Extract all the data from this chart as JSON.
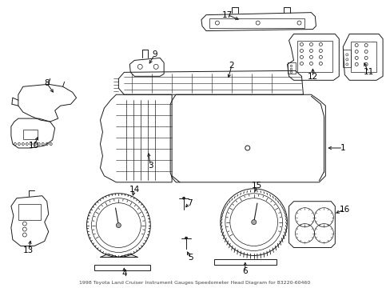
{
  "title": "1998 Toyota Land Cruiser Instrument Gauges Speedometer Head Diagram for 83220-60460",
  "bg_color": "#ffffff",
  "line_color": "#1a1a1a",
  "label_color": "#000000",
  "fig_width": 4.89,
  "fig_height": 3.6,
  "dpi": 100
}
